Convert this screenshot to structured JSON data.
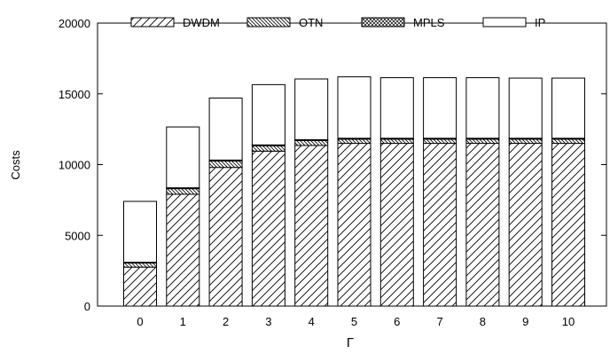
{
  "chart_data": {
    "type": "bar",
    "stacked": true,
    "categories": [
      "0",
      "1",
      "2",
      "3",
      "4",
      "5",
      "6",
      "7",
      "8",
      "9",
      "10"
    ],
    "series": [
      {
        "name": "DWDM",
        "pattern": "diagonal-hatch",
        "values": [
          2750,
          7900,
          9800,
          10950,
          11350,
          11500,
          11500,
          11500,
          11500,
          11500,
          11500
        ]
      },
      {
        "name": "OTN",
        "pattern": "back-diagonal-hatch",
        "values": [
          300,
          400,
          450,
          380,
          350,
          300,
          300,
          300,
          300,
          300,
          300
        ]
      },
      {
        "name": "MPLS",
        "pattern": "crosshatch",
        "values": [
          50,
          60,
          70,
          60,
          60,
          60,
          60,
          60,
          60,
          60,
          60
        ]
      },
      {
        "name": "IP",
        "pattern": "solid-white",
        "values": [
          4300,
          4300,
          4380,
          4260,
          4290,
          4340,
          4280,
          4280,
          4280,
          4250,
          4250
        ]
      }
    ],
    "xlabel": "Γ",
    "ylabel": "Costs",
    "ylim": [
      0,
      20000
    ],
    "yticks": [
      "0",
      "5000",
      "10000",
      "15000",
      "20000"
    ],
    "legend_position": "top",
    "grid": false,
    "colors": {
      "stroke": "#000000",
      "fill": "#ffffff"
    }
  }
}
